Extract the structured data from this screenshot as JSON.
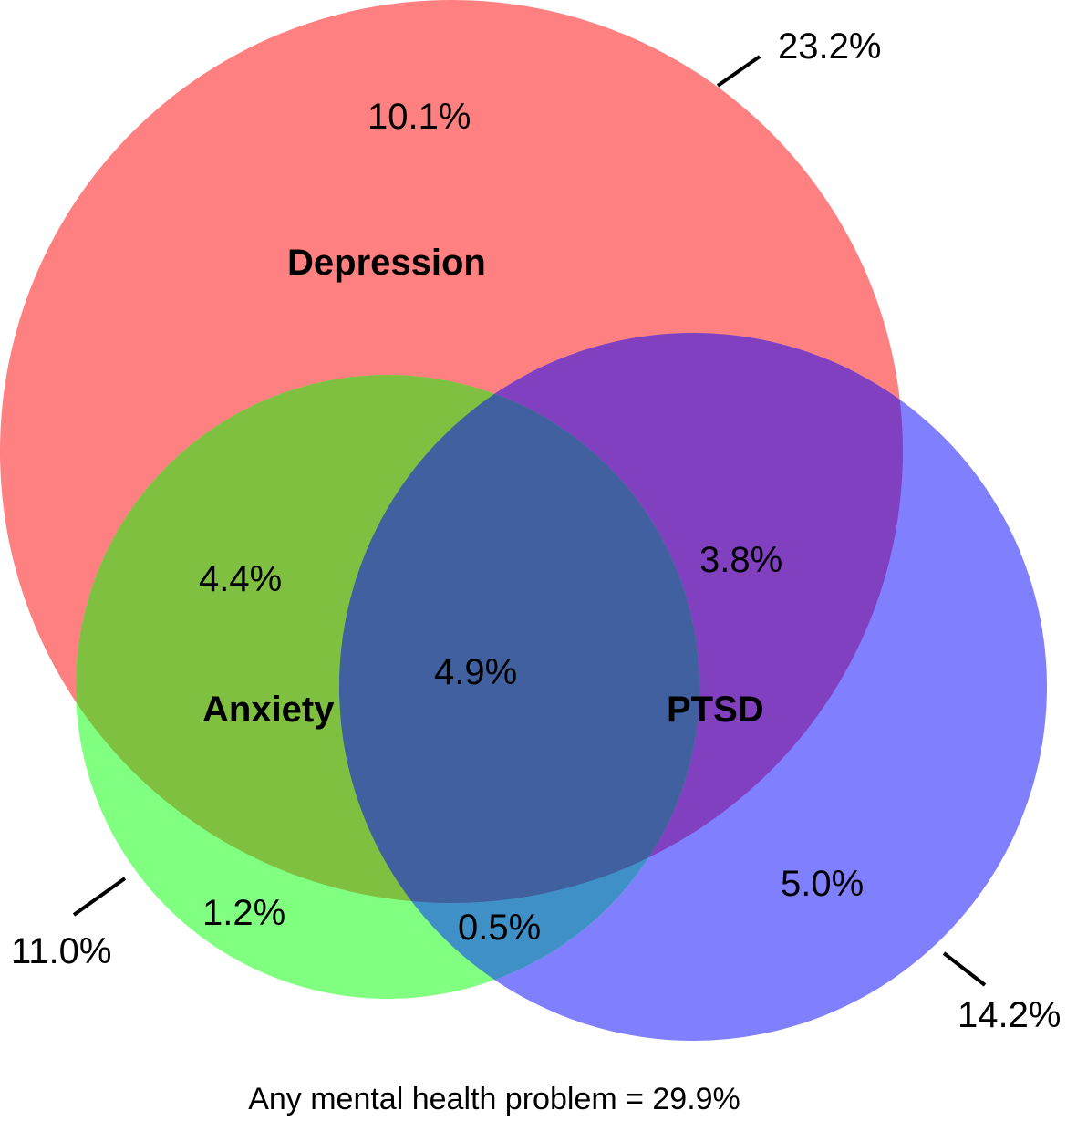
{
  "sets": {
    "depression": {
      "name": "Depression",
      "total": "23.2%",
      "color": "#FF8080"
    },
    "anxiety": {
      "name": "Anxiety",
      "total": "11.0%",
      "color": "#80FF80"
    },
    "ptsd": {
      "name": "PTSD",
      "total": "14.2%",
      "color": "#8080FF"
    }
  },
  "regions": {
    "depression_only": "10.1%",
    "depression_anxiety": "4.4%",
    "depression_ptsd": "3.8%",
    "all_three": "4.9%",
    "anxiety_only": "1.2%",
    "anxiety_ptsd": "0.5%",
    "ptsd_only": "5.0%"
  },
  "footer": "Any mental health problem = 29.9%"
}
